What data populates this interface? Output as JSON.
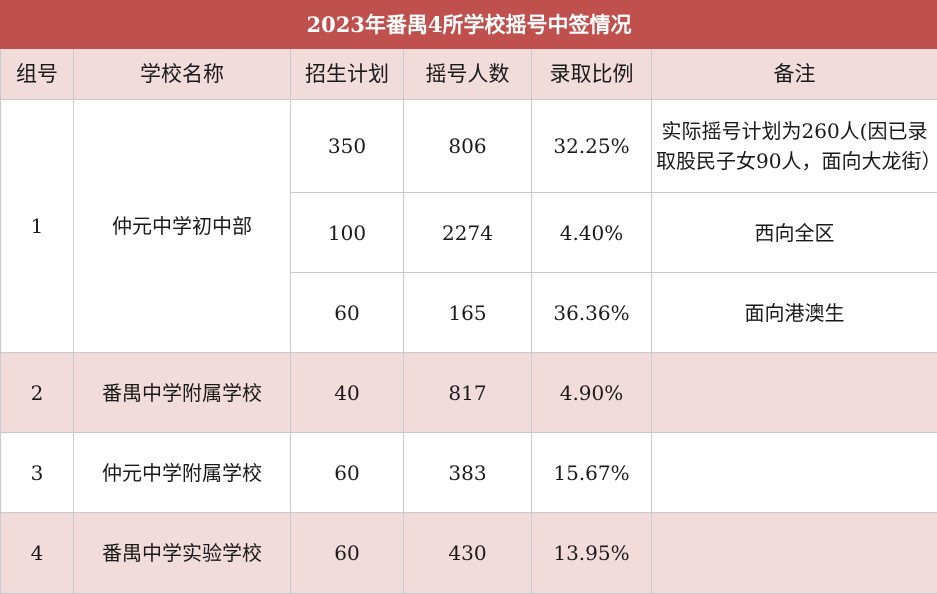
{
  "title": "2023年番禺4所学校摇号中签情况",
  "headers": [
    "组号",
    "学校名称",
    "招生计划",
    "摇号人数",
    "录取比例",
    "备注"
  ],
  "group1": {
    "id": "1",
    "school": "仲元中学初中部",
    "rows": [
      {
        "plan": "350",
        "applicants": "806",
        "ratio": "32.25%",
        "note": "实际摇号计划为260人(因已录取股民子女90人，面向大龙街）"
      },
      {
        "plan": "100",
        "applicants": "2274",
        "ratio": "4.40%",
        "note": "西向全区"
      },
      {
        "plan": "60",
        "applicants": "165",
        "ratio": "36.36%",
        "note": "面向港澳生"
      }
    ]
  },
  "rows": [
    {
      "id": "2",
      "school": "番禺中学附属学校",
      "plan": "40",
      "applicants": "817",
      "ratio": "4.90%",
      "note": ""
    },
    {
      "id": "3",
      "school": "仲元中学附属学校",
      "plan": "60",
      "applicants": "383",
      "ratio": "15.67%",
      "note": ""
    },
    {
      "id": "4",
      "school": "番禺中学实验学校",
      "plan": "60",
      "applicants": "430",
      "ratio": "13.95%",
      "note": ""
    }
  ]
}
